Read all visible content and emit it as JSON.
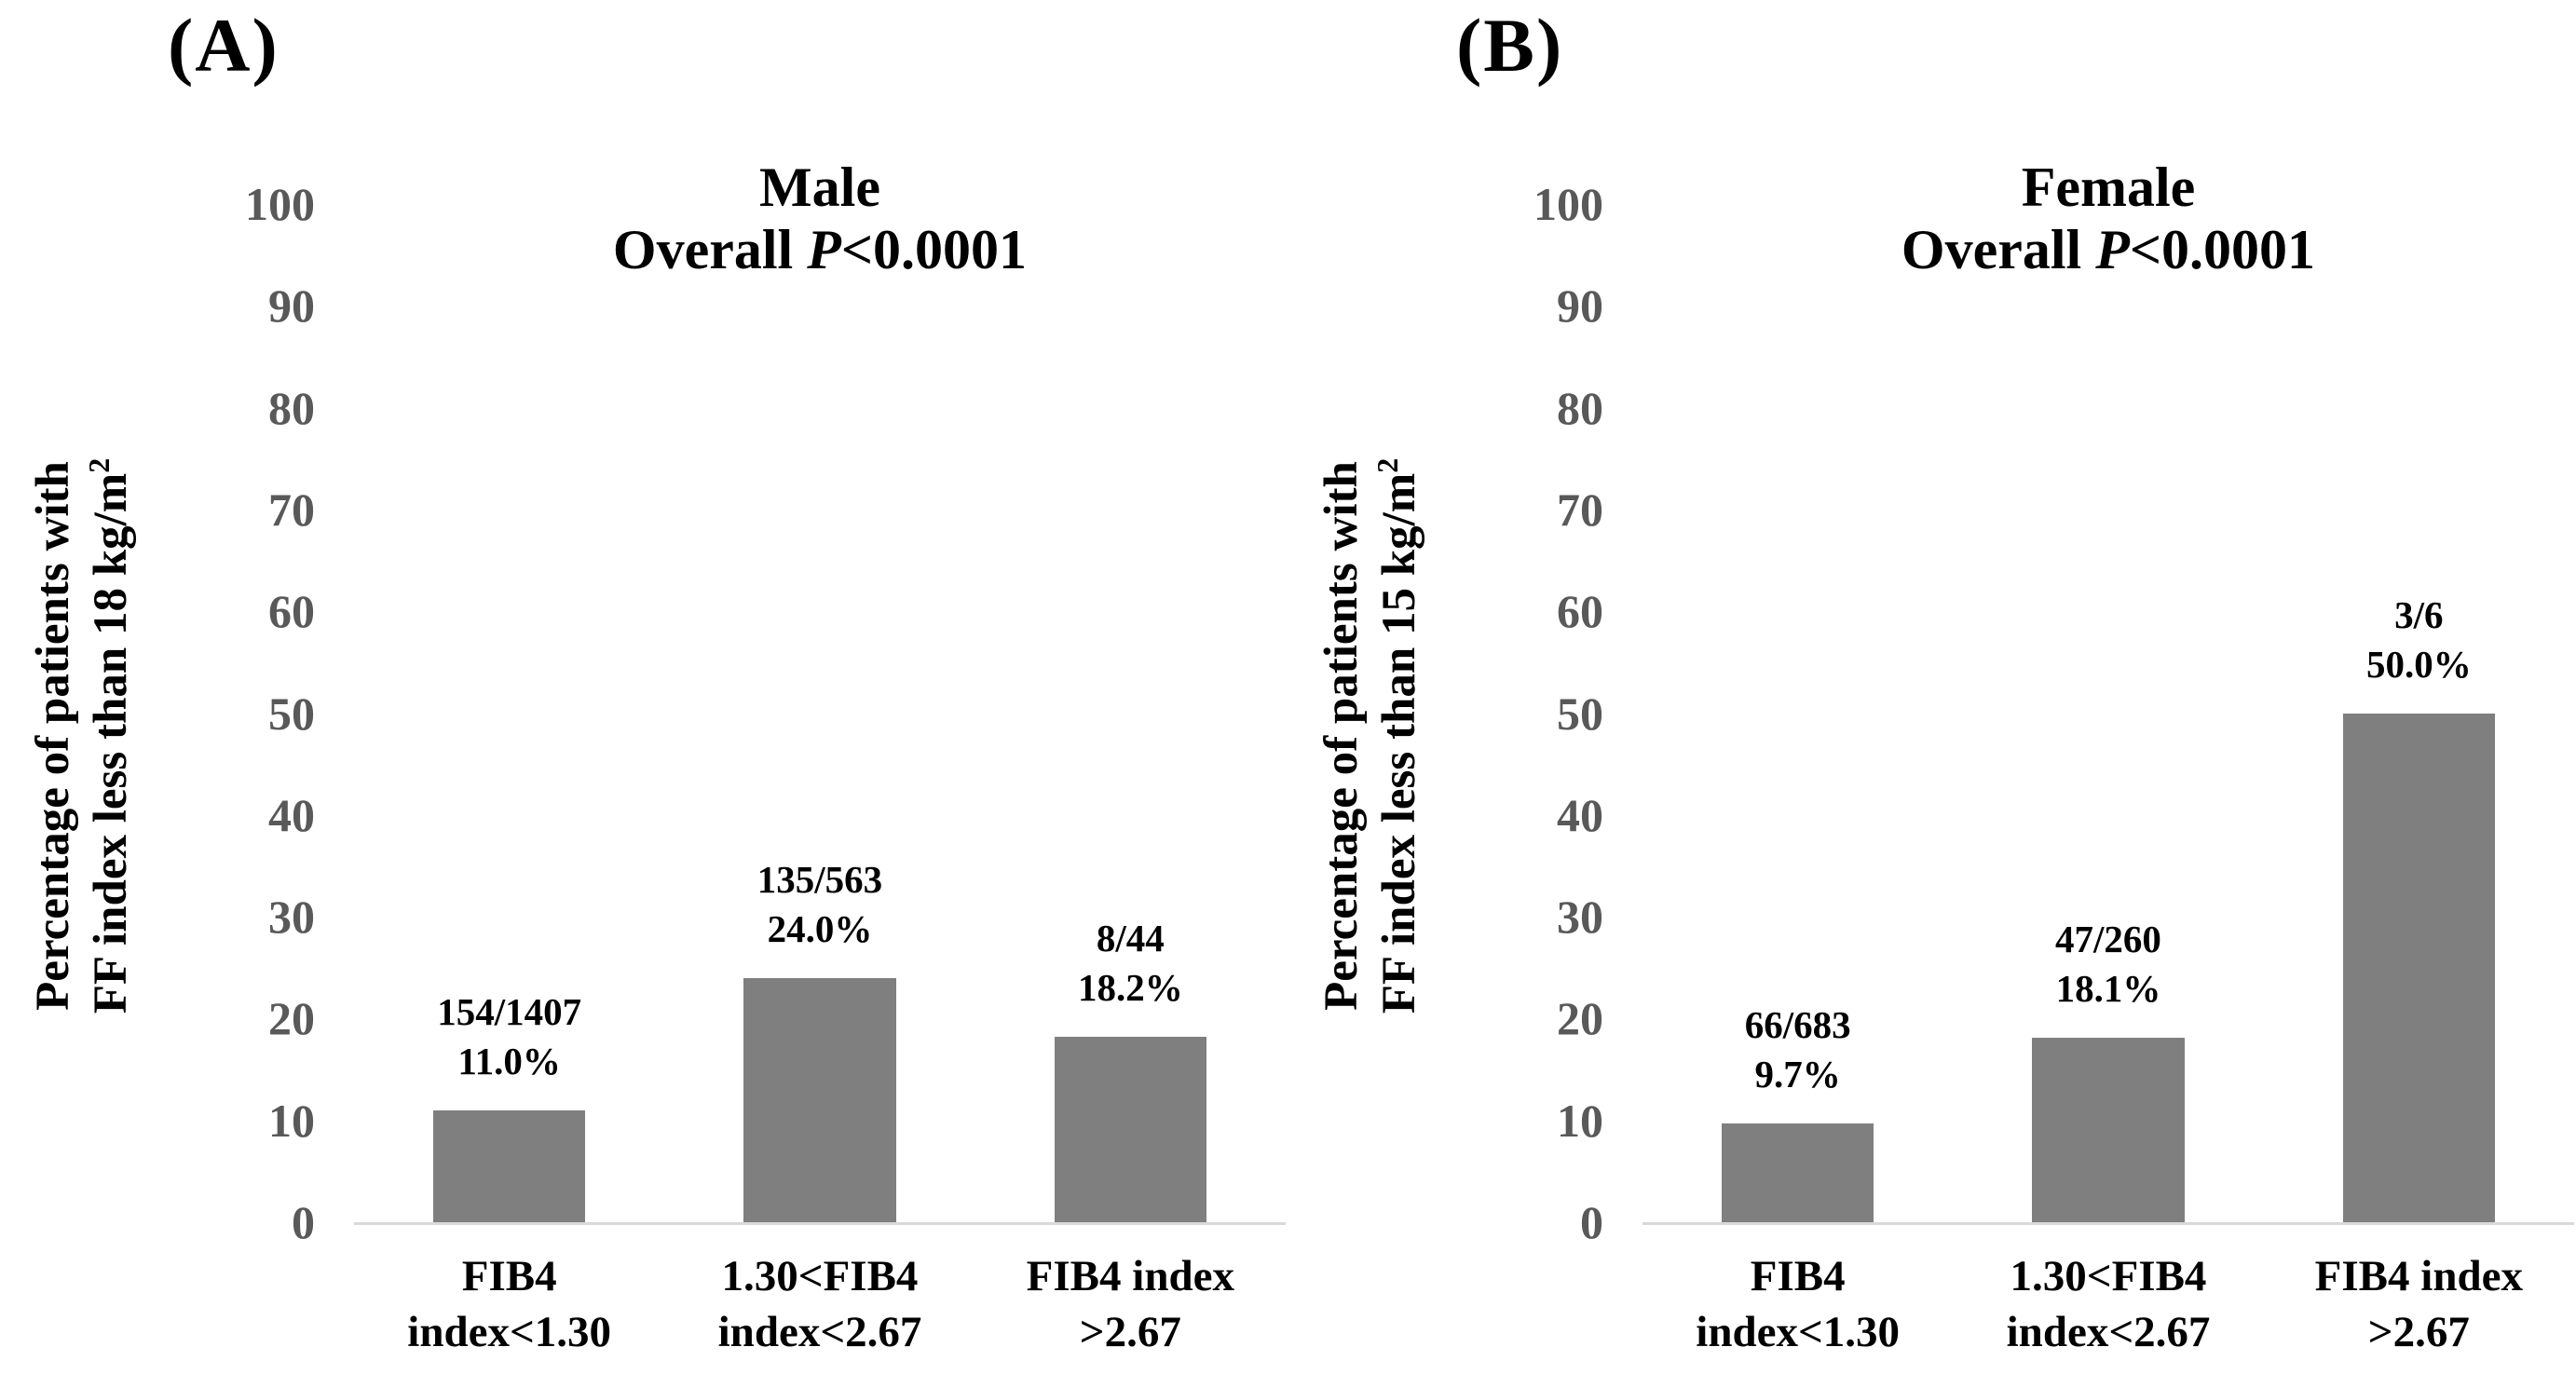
{
  "colors": {
    "bar": "#7f7f7f",
    "tick_label": "#595959",
    "baseline": "#d9d9d9",
    "text": "#000000",
    "background": "#ffffff"
  },
  "figure": {
    "panels": [
      {
        "label": "(A)",
        "title": "Male",
        "subtitle": {
          "prefix": "Overall ",
          "italic": "P",
          "rest": "<0.0001"
        },
        "ylabel": {
          "line1": "Percentage of patients with",
          "line2": "FF index less than 18 kg/m",
          "sup": "2"
        },
        "bars": [
          {
            "count": "154/1407",
            "pct": "11.0%",
            "value": 11.0
          },
          {
            "count": "135/563",
            "pct": "24.0%",
            "value": 24.0
          },
          {
            "count": "8/44",
            "pct": "18.2%",
            "value": 18.2
          }
        ],
        "xlabels": [
          {
            "line1": "FIB4",
            "line2": "index<1.30"
          },
          {
            "line1": "1.30<FIB4",
            "line2": "index<2.67"
          },
          {
            "line1": "FIB4 index",
            "line2": ">2.67"
          }
        ]
      },
      {
        "label": "(B)",
        "title": "Female",
        "subtitle": {
          "prefix": "Overall ",
          "italic": "P",
          "rest": "<0.0001"
        },
        "ylabel": {
          "line1": "Percentage of patients with",
          "line2": "FF index less than 15 kg/m",
          "sup": "2"
        },
        "bars": [
          {
            "count": "66/683",
            "pct": "9.7%",
            "value": 9.7
          },
          {
            "count": "47/260",
            "pct": "18.1%",
            "value": 18.1
          },
          {
            "count": "3/6",
            "pct": "50.0%",
            "value": 50.0
          }
        ],
        "xlabels": [
          {
            "line1": "FIB4",
            "line2": "index<1.30"
          },
          {
            "line1": "1.30<FIB4",
            "line2": "index<2.67"
          },
          {
            "line1": "FIB4 index",
            "line2": ">2.67"
          }
        ]
      }
    ]
  },
  "chart_data": [
    {
      "type": "bar",
      "panel": "A",
      "title": "Male",
      "subtitle": "Overall P<0.0001",
      "categories": [
        "FIB4 index<1.30",
        "1.30<FIB4 index<2.67",
        "FIB4 index >2.67"
      ],
      "values": [
        11.0,
        24.0,
        18.2
      ],
      "bar_labels": [
        [
          "154/1407",
          "11.0%"
        ],
        [
          "135/563",
          "24.0%"
        ],
        [
          "8/44",
          "18.2%"
        ]
      ],
      "xlabel": "",
      "ylabel": "Percentage of patients with FF index less than 18 kg/m²",
      "ylim": [
        0,
        100
      ],
      "yticks": [
        0,
        10,
        20,
        30,
        40,
        50,
        60,
        70,
        80,
        90,
        100
      ],
      "grid": false,
      "legend": "none",
      "bar_color": "#7f7f7f"
    },
    {
      "type": "bar",
      "panel": "B",
      "title": "Female",
      "subtitle": "Overall P<0.0001",
      "categories": [
        "FIB4 index<1.30",
        "1.30<FIB4 index<2.67",
        "FIB4 index >2.67"
      ],
      "values": [
        9.7,
        18.1,
        50.0
      ],
      "bar_labels": [
        [
          "66/683",
          "9.7%"
        ],
        [
          "47/260",
          "18.1%"
        ],
        [
          "3/6",
          "50.0%"
        ]
      ],
      "xlabel": "",
      "ylabel": "Percentage of patients with FF index less than 15 kg/m²",
      "ylim": [
        0,
        100
      ],
      "yticks": [
        0,
        10,
        20,
        30,
        40,
        50,
        60,
        70,
        80,
        90,
        100
      ],
      "grid": false,
      "legend": "none",
      "bar_color": "#7f7f7f"
    }
  ]
}
